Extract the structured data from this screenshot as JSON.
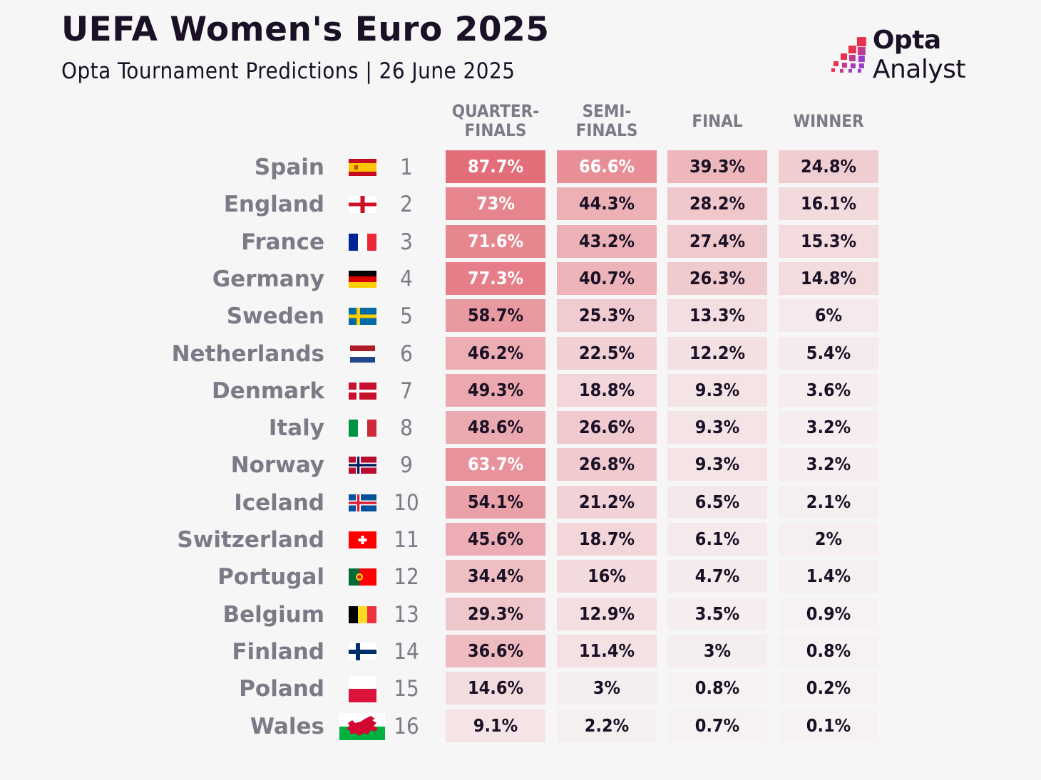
{
  "header": {
    "title": "UEFA Women's Euro 2025",
    "subtitle": "Opta Tournament Predictions | 26 June 2025"
  },
  "logo": {
    "icon": "opta-pixel-steps-icon",
    "brand_bold": "Opta",
    "brand_regular": "Analyst",
    "colors": [
      "#e8324a",
      "#c23a8e",
      "#9b3bcb"
    ]
  },
  "colors": {
    "background": "#f6f6f7",
    "title": "#1a1126",
    "label": "#7c7a86",
    "heat_high": "#e26b76",
    "heat_low": "#f6f2f3"
  },
  "chart_data": {
    "type": "heatmap",
    "title": "UEFA Women's Euro 2025",
    "subtitle": "Opta Tournament Predictions | 26 June 2025",
    "columns": [
      "QUARTER-\nFINALS",
      "SEMI-\nFINALS",
      "FINAL",
      "WINNER"
    ],
    "unit": "%",
    "rows": [
      {
        "team": "Spain",
        "rank": "1",
        "flag": "spain-flag-icon",
        "values": [
          87.7,
          66.6,
          39.3,
          24.8
        ],
        "labels": [
          "87.7%",
          "66.6%",
          "39.3%",
          "24.8%"
        ]
      },
      {
        "team": "England",
        "rank": "2",
        "flag": "england-flag-icon",
        "values": [
          73,
          44.3,
          28.2,
          16.1
        ],
        "labels": [
          "73%",
          "44.3%",
          "28.2%",
          "16.1%"
        ]
      },
      {
        "team": "France",
        "rank": "3",
        "flag": "france-flag-icon",
        "values": [
          71.6,
          43.2,
          27.4,
          15.3
        ],
        "labels": [
          "71.6%",
          "43.2%",
          "27.4%",
          "15.3%"
        ]
      },
      {
        "team": "Germany",
        "rank": "4",
        "flag": "germany-flag-icon",
        "values": [
          77.3,
          40.7,
          26.3,
          14.8
        ],
        "labels": [
          "77.3%",
          "40.7%",
          "26.3%",
          "14.8%"
        ]
      },
      {
        "team": "Sweden",
        "rank": "5",
        "flag": "sweden-flag-icon",
        "values": [
          58.7,
          25.3,
          13.3,
          6
        ],
        "labels": [
          "58.7%",
          "25.3%",
          "13.3%",
          "6%"
        ]
      },
      {
        "team": "Netherlands",
        "rank": "6",
        "flag": "netherlands-flag-icon",
        "values": [
          46.2,
          22.5,
          12.2,
          5.4
        ],
        "labels": [
          "46.2%",
          "22.5%",
          "12.2%",
          "5.4%"
        ]
      },
      {
        "team": "Denmark",
        "rank": "7",
        "flag": "denmark-flag-icon",
        "values": [
          49.3,
          18.8,
          9.3,
          3.6
        ],
        "labels": [
          "49.3%",
          "18.8%",
          "9.3%",
          "3.6%"
        ]
      },
      {
        "team": "Italy",
        "rank": "8",
        "flag": "italy-flag-icon",
        "values": [
          48.6,
          26.6,
          9.3,
          3.2
        ],
        "labels": [
          "48.6%",
          "26.6%",
          "9.3%",
          "3.2%"
        ]
      },
      {
        "team": "Norway",
        "rank": "9",
        "flag": "norway-flag-icon",
        "values": [
          63.7,
          26.8,
          9.3,
          3.2
        ],
        "labels": [
          "63.7%",
          "26.8%",
          "9.3%",
          "3.2%"
        ]
      },
      {
        "team": "Iceland",
        "rank": "10",
        "flag": "iceland-flag-icon",
        "values": [
          54.1,
          21.2,
          6.5,
          2.1
        ],
        "labels": [
          "54.1%",
          "21.2%",
          "6.5%",
          "2.1%"
        ]
      },
      {
        "team": "Switzerland",
        "rank": "11",
        "flag": "switzerland-flag-icon",
        "values": [
          45.6,
          18.7,
          6.1,
          2
        ],
        "labels": [
          "45.6%",
          "18.7%",
          "6.1%",
          "2%"
        ]
      },
      {
        "team": "Portugal",
        "rank": "12",
        "flag": "portugal-flag-icon",
        "values": [
          34.4,
          16,
          4.7,
          1.4
        ],
        "labels": [
          "34.4%",
          "16%",
          "4.7%",
          "1.4%"
        ]
      },
      {
        "team": "Belgium",
        "rank": "13",
        "flag": "belgium-flag-icon",
        "values": [
          29.3,
          12.9,
          3.5,
          0.9
        ],
        "labels": [
          "29.3%",
          "12.9%",
          "3.5%",
          "0.9%"
        ]
      },
      {
        "team": "Finland",
        "rank": "14",
        "flag": "finland-flag-icon",
        "values": [
          36.6,
          11.4,
          3,
          0.8
        ],
        "labels": [
          "36.6%",
          "11.4%",
          "3%",
          "0.8%"
        ]
      },
      {
        "team": "Poland",
        "rank": "15",
        "flag": "poland-flag-icon",
        "values": [
          14.6,
          3,
          0.8,
          0.2
        ],
        "labels": [
          "14.6%",
          "3%",
          "0.8%",
          "0.2%"
        ]
      },
      {
        "team": "Wales",
        "rank": "16",
        "flag": "wales-flag-icon",
        "values": [
          9.1,
          2.2,
          0.7,
          0.1
        ],
        "labels": [
          "9.1%",
          "2.2%",
          "0.7%",
          "0.1%"
        ]
      }
    ],
    "color_scale": {
      "min": 0,
      "max": 90,
      "low": "#f6f2f3",
      "high": "#e26b76",
      "light_text_threshold": 60
    }
  }
}
